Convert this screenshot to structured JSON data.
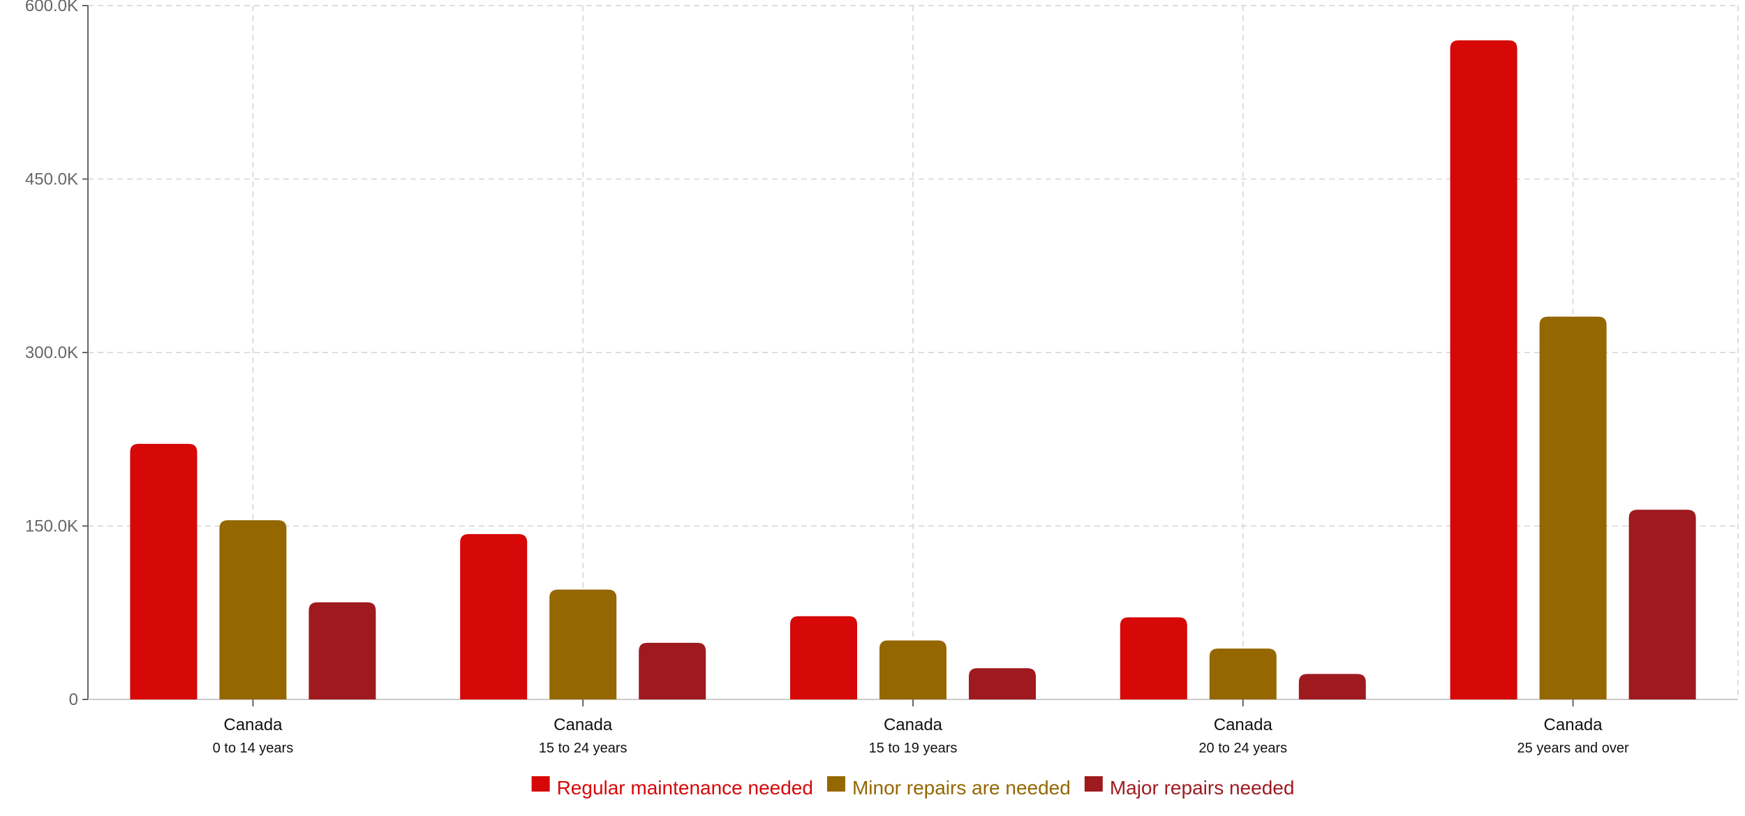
{
  "chart_data": {
    "type": "bar",
    "title": "",
    "xlabel": "",
    "ylabel": "",
    "ylim": [
      0,
      600000
    ],
    "yticks": [
      0,
      150000,
      300000,
      450000,
      600000
    ],
    "ytick_labels": [
      "0",
      "150.0K",
      "300.0K",
      "450.0K",
      "600.0K"
    ],
    "grid": true,
    "legend_position": "bottom-center",
    "categories": [
      {
        "label": "Canada",
        "sublabel": "0 to 14 years"
      },
      {
        "label": "Canada",
        "sublabel": "15 to 24 years"
      },
      {
        "label": "Canada",
        "sublabel": "15 to 19 years"
      },
      {
        "label": "Canada",
        "sublabel": "20 to 24 years"
      },
      {
        "label": "Canada",
        "sublabel": "25 years and over"
      }
    ],
    "series": [
      {
        "name": "Regular maintenance needed",
        "color": "#d60808",
        "values": [
          221000,
          143000,
          72000,
          71000,
          570000
        ]
      },
      {
        "name": "Minor repairs are needed",
        "color": "#946700",
        "values": [
          155000,
          95000,
          51000,
          44000,
          331000
        ]
      },
      {
        "name": "Major repairs needed",
        "color": "#9e1a1f",
        "values": [
          84000,
          49000,
          27000,
          22000,
          164000
        ]
      }
    ]
  }
}
